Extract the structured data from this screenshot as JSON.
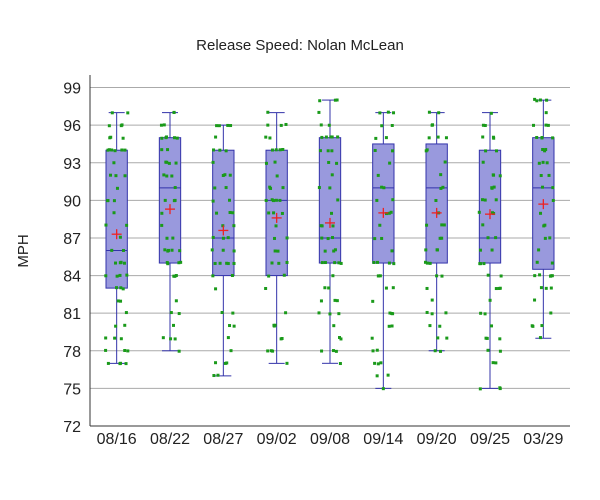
{
  "chart_data": {
    "type": "box",
    "title": "Release Speed: Nolan McLean",
    "ylabel": "MPH",
    "xlabel": "",
    "ylim": [
      72,
      100
    ],
    "yticks": [
      72,
      75,
      78,
      81,
      84,
      87,
      90,
      93,
      96,
      99
    ],
    "grid": true,
    "colors": {
      "box_fill": "#9999dd",
      "box_stroke": "#3333aa",
      "points": "#1a9a1a",
      "mean_marker": "#ee2222",
      "grid": "#aaaaaa"
    },
    "categories": [
      "08/16",
      "08/22",
      "08/27",
      "09/02",
      "09/08",
      "09/14",
      "09/20",
      "09/25",
      "03/29"
    ],
    "boxes": [
      {
        "label": "08/16",
        "whisker_low": 77,
        "q1": 83,
        "median": 86,
        "q3": 94,
        "whisker_high": 97,
        "mean": 87.3
      },
      {
        "label": "08/22",
        "whisker_low": 78,
        "q1": 85,
        "median": 91,
        "q3": 95,
        "whisker_high": 97,
        "mean": 89.3
      },
      {
        "label": "08/27",
        "whisker_low": 76,
        "q1": 84,
        "median": 87,
        "q3": 94,
        "whisker_high": 96,
        "mean": 87.6
      },
      {
        "label": "09/02",
        "whisker_low": 77,
        "q1": 84,
        "median": 90,
        "q3": 94,
        "whisker_high": 97,
        "mean": 88.6
      },
      {
        "label": "09/08",
        "whisker_low": 77,
        "q1": 85,
        "median": 87,
        "q3": 95,
        "whisker_high": 98,
        "mean": 88.2
      },
      {
        "label": "09/14",
        "whisker_low": 75,
        "q1": 85,
        "median": 91,
        "q3": 94.5,
        "whisker_high": 97,
        "mean": 89.0
      },
      {
        "label": "09/20",
        "whisker_low": 78,
        "q1": 85,
        "median": 91,
        "q3": 94.5,
        "whisker_high": 97,
        "mean": 89.0
      },
      {
        "label": "09/25",
        "whisker_low": 75,
        "q1": 85,
        "median": 87,
        "q3": 94,
        "whisker_high": 97,
        "mean": 88.9
      },
      {
        "label": "03/29",
        "whisker_low": 79,
        "q1": 84.5,
        "median": 91,
        "q3": 95,
        "whisker_high": 98,
        "mean": 89.7
      }
    ],
    "points": [
      [
        97,
        96,
        95,
        94,
        94,
        93,
        92,
        91,
        90,
        89,
        88,
        87,
        86,
        86,
        85,
        85,
        84,
        84,
        83,
        82,
        81,
        80,
        80,
        79,
        78,
        77,
        77
      ],
      [
        97,
        97,
        96,
        95,
        95,
        94,
        93,
        93,
        92,
        91,
        90,
        89,
        88,
        87,
        86,
        86,
        85,
        85,
        84,
        82,
        81,
        80,
        79,
        78
      ],
      [
        96,
        96,
        95,
        94,
        94,
        93,
        92,
        91,
        90,
        89,
        88,
        87,
        87,
        86,
        85,
        85,
        84,
        83,
        81,
        80,
        79,
        78,
        77,
        76
      ],
      [
        97,
        96,
        95,
        94,
        94,
        93,
        92,
        91,
        90,
        90,
        89,
        88,
        87,
        86,
        85,
        84,
        84,
        83,
        81,
        80,
        79,
        78,
        77
      ],
      [
        98,
        97,
        96,
        95,
        95,
        94,
        93,
        92,
        91,
        90,
        89,
        88,
        87,
        86,
        85,
        85,
        84,
        83,
        82,
        81,
        80,
        79,
        78,
        77
      ],
      [
        97,
        96,
        95,
        94,
        93,
        92,
        91,
        90,
        89,
        88,
        87,
        86,
        85,
        85,
        84,
        83,
        82,
        81,
        80,
        79,
        78,
        77,
        76,
        75
      ],
      [
        97,
        96,
        95,
        94,
        93,
        92,
        91,
        90,
        89,
        88,
        87,
        86,
        85,
        85,
        84,
        83,
        82,
        81,
        80,
        79,
        78,
        78
      ],
      [
        97,
        96,
        95,
        95,
        94,
        93,
        92,
        91,
        90,
        89,
        88,
        87,
        86,
        85,
        85,
        84,
        83,
        82,
        81,
        80,
        79,
        78,
        77,
        75
      ],
      [
        98,
        98,
        97,
        96,
        95,
        95,
        94,
        93,
        92,
        91,
        90,
        89,
        88,
        87,
        86,
        85,
        84,
        84,
        83,
        82,
        81,
        80,
        79
      ]
    ]
  }
}
